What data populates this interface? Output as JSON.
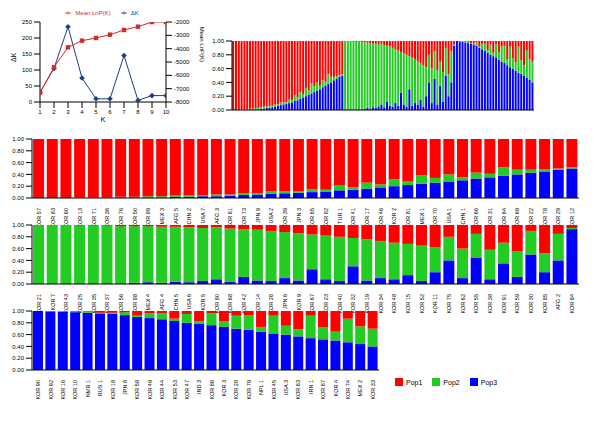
{
  "chart_data": [
    {
      "type": "line",
      "x_label": "K",
      "y_label": "ΔK",
      "y2_label": "Mean LnP(K)",
      "legend": "top",
      "x": [
        1,
        2,
        3,
        4,
        5,
        6,
        7,
        8,
        9,
        10
      ],
      "xlim": [
        1,
        10
      ],
      "xticks": [
        1,
        2,
        3,
        4,
        5,
        6,
        7,
        8,
        9,
        10
      ],
      "ylim": [
        0,
        250
      ],
      "yticks": [
        0,
        50,
        100,
        150,
        200,
        250
      ],
      "y2lim": [
        -8000,
        -2000
      ],
      "y2ticks": [
        -8000,
        -7000,
        -6000,
        -5000,
        -4000,
        -3000,
        -2000
      ],
      "series": [
        {
          "name": "ΔK",
          "color": "#1f3c88",
          "marker": "diamond",
          "values": [
            30,
            105,
            235,
            75,
            10,
            10,
            145,
            5,
            20,
            20
          ]
        },
        {
          "name": "Mean LnP(K)",
          "color": "#d62a2a",
          "marker": "square",
          "axis": "y2",
          "values": [
            -7300,
            -5400,
            -3900,
            -3400,
            -3200,
            -2950,
            -2600,
            -2350,
            -2000,
            -2000
          ]
        }
      ]
    },
    {
      "type": "bar",
      "stacked": true,
      "tick_labels": "y",
      "ylim": [
        0,
        1
      ],
      "yticks": [
        {
          "value": 0,
          "label": "0.00"
        },
        {
          "value": 0.2,
          "label": "0.20"
        },
        {
          "value": 0.4,
          "label": "0.40"
        },
        {
          "value": 0.6,
          "label": "0.60"
        },
        {
          "value": 0.8,
          "label": "0.80"
        },
        {
          "value": 1,
          "label": "1.00"
        }
      ],
      "series": [
        {
          "name": "Pop1",
          "color": "#ff0000",
          "values": [
            1,
            1,
            1,
            0.99,
            0.99,
            0.99,
            0.98,
            0.98,
            0.97,
            0.97,
            0.96,
            0.95,
            0.95,
            0.94,
            0.94,
            0.92,
            0.92,
            0.89,
            0.89,
            0.89,
            0.85,
            0.86,
            0.79,
            0.82,
            0.74,
            0.77,
            0.68,
            0.72,
            0.61,
            0.66,
            0.6,
            0.65,
            0.57,
            0.59,
            0.48,
            0.52,
            0.52,
            0.51,
            0.5,
            0.48,
            0,
            0,
            0,
            0.01,
            0.01,
            0.01,
            0.02,
            0.02,
            0.02,
            0.03,
            0.03,
            0.04,
            0.05,
            0.04,
            0.06,
            0.07,
            0.08,
            0.1,
            0.12,
            0.14,
            0.16,
            0.18,
            0.2,
            0.22,
            0.24,
            0.27,
            0.3,
            0.32,
            0.35,
            0.38,
            0.2,
            0.4,
            0.15,
            0.42,
            0.3,
            0.45,
            0.1,
            0.48,
            0.15,
            0.05,
            0,
            0.01,
            0,
            0.01,
            0.01,
            0.03,
            0.03,
            0.02,
            0.08,
            0.04,
            0.04,
            0.13,
            0.05,
            0.17,
            0.04,
            0.17,
            0.08,
            0.07,
            0.27,
            0.08,
            0.25,
            0.31,
            0.08,
            0.28,
            0.35,
            0.13,
            0.26,
            0.3
          ]
        },
        {
          "name": "Pop2",
          "color": "#22cc22",
          "values": [
            0,
            0,
            0,
            0.01,
            0.01,
            0.01,
            0.01,
            0.01,
            0.02,
            0.02,
            0.02,
            0.03,
            0.02,
            0.03,
            0.02,
            0.03,
            0.02,
            0.04,
            0.03,
            0.02,
            0.05,
            0.03,
            0.08,
            0.04,
            0.1,
            0.05,
            0.12,
            0.06,
            0.15,
            0.08,
            0.12,
            0.05,
            0.1,
            0.06,
            0.14,
            0.08,
            0.05,
            0.04,
            0.02,
            0.02,
            1,
            1,
            0.99,
            0.99,
            0.98,
            0.98,
            0.97,
            0.96,
            0.95,
            0.95,
            0.93,
            0.93,
            0.9,
            0.88,
            0.9,
            0.81,
            0.86,
            0.85,
            0.78,
            0.8,
            0.59,
            0.74,
            0.75,
            0.48,
            0.7,
            0.63,
            0.62,
            0.53,
            0.6,
            0.42,
            0.4,
            0.5,
            0.4,
            0.5,
            0.35,
            0.43,
            0.4,
            0.32,
            0.45,
            0.02,
            0,
            0,
            0.01,
            0.01,
            0.02,
            0.01,
            0.02,
            0.05,
            0.02,
            0.08,
            0.1,
            0.04,
            0.15,
            0.05,
            0.2,
            0.1,
            0.22,
            0.25,
            0.08,
            0.3,
            0.15,
            0.12,
            0.38,
            0.2,
            0.15,
            0.4,
            0.3,
            0.3
          ]
        },
        {
          "name": "Pop3",
          "color": "#0000ff",
          "values": [
            0,
            0,
            0,
            0,
            0,
            0,
            0.01,
            0.01,
            0.01,
            0.01,
            0.02,
            0.02,
            0.03,
            0.03,
            0.04,
            0.05,
            0.06,
            0.07,
            0.08,
            0.09,
            0.1,
            0.11,
            0.13,
            0.14,
            0.16,
            0.18,
            0.2,
            0.22,
            0.24,
            0.26,
            0.28,
            0.3,
            0.33,
            0.35,
            0.38,
            0.4,
            0.43,
            0.45,
            0.48,
            0.5,
            0,
            0,
            0.01,
            0,
            0.01,
            0.01,
            0.01,
            0.02,
            0.03,
            0.02,
            0.04,
            0.03,
            0.05,
            0.08,
            0.04,
            0.12,
            0.06,
            0.05,
            0.1,
            0.06,
            0.25,
            0.08,
            0.05,
            0.3,
            0.06,
            0.1,
            0.08,
            0.15,
            0.05,
            0.2,
            0.4,
            0.1,
            0.45,
            0.08,
            0.35,
            0.12,
            0.5,
            0.2,
            0.4,
            0.93,
            1,
            0.99,
            0.99,
            0.98,
            0.97,
            0.96,
            0.95,
            0.93,
            0.9,
            0.88,
            0.86,
            0.83,
            0.8,
            0.78,
            0.76,
            0.73,
            0.7,
            0.68,
            0.65,
            0.62,
            0.6,
            0.57,
            0.54,
            0.52,
            0.5,
            0.47,
            0.44,
            0.4
          ]
        }
      ]
    },
    {
      "type": "bar",
      "stacked": true,
      "ylim": [
        0,
        1
      ],
      "yticks": [
        {
          "value": 0,
          "label": "0.00"
        },
        {
          "value": 0.2,
          "label": "0.20"
        },
        {
          "value": 0.4,
          "label": "0.40"
        },
        {
          "value": 0.6,
          "label": "0.60"
        },
        {
          "value": 0.8,
          "label": "0.80"
        },
        {
          "value": 1,
          "label": "1.00"
        }
      ],
      "categories": [
        "KOR 57",
        "KOR 83",
        "KOR 60",
        "KOR 13",
        "KOR 71",
        "KOR 36",
        "KOR 76",
        "KOR 50",
        "KOR 89",
        "MEX 3",
        "AFG 5",
        "CHN 2",
        "USA 7",
        "AFG 3",
        "KOR 61",
        "KOR 73",
        "JPN 9",
        "USA 2",
        "KOR 39",
        "JPN 3",
        "KOR 65",
        "KOR 82",
        "TUR 1",
        "KOR 41",
        "KOR 17",
        "KOR 46",
        "KOR 2",
        "KOR 81",
        "MEX 1",
        "KOR 70",
        "USA 1",
        "CHN 1",
        "KOR 66",
        "KOR 31",
        "KOR 64",
        "KOR 69",
        "KOR 22",
        "KOR 78",
        "KOR 29",
        "KOR 12"
      ],
      "series": [
        {
          "name": "Pop1",
          "color": "#ff0000",
          "values": [
            1,
            1,
            1,
            0.99,
            0.99,
            0.99,
            0.98,
            0.98,
            0.97,
            0.97,
            0.96,
            0.95,
            0.95,
            0.94,
            0.94,
            0.92,
            0.92,
            0.89,
            0.89,
            0.89,
            0.85,
            0.86,
            0.79,
            0.82,
            0.74,
            0.77,
            0.68,
            0.72,
            0.61,
            0.66,
            0.6,
            0.65,
            0.57,
            0.59,
            0.48,
            0.52,
            0.52,
            0.51,
            0.5,
            0.48
          ]
        },
        {
          "name": "Pop2",
          "color": "#22cc22",
          "values": [
            0,
            0,
            0,
            0.01,
            0.01,
            0.01,
            0.01,
            0.01,
            0.02,
            0.02,
            0.02,
            0.03,
            0.02,
            0.03,
            0.02,
            0.03,
            0.02,
            0.04,
            0.03,
            0.02,
            0.05,
            0.03,
            0.08,
            0.04,
            0.1,
            0.05,
            0.12,
            0.06,
            0.15,
            0.08,
            0.12,
            0.05,
            0.1,
            0.06,
            0.14,
            0.08,
            0.05,
            0.04,
            0.02,
            0.02
          ]
        },
        {
          "name": "Pop3",
          "color": "#0000ff",
          "values": [
            0,
            0,
            0,
            0,
            0,
            0,
            0.01,
            0.01,
            0.01,
            0.01,
            0.02,
            0.02,
            0.03,
            0.03,
            0.04,
            0.05,
            0.06,
            0.07,
            0.08,
            0.09,
            0.1,
            0.11,
            0.13,
            0.14,
            0.16,
            0.18,
            0.2,
            0.22,
            0.24,
            0.26,
            0.28,
            0.3,
            0.33,
            0.35,
            0.38,
            0.4,
            0.43,
            0.45,
            0.48,
            0.5
          ]
        }
      ]
    },
    {
      "type": "bar",
      "stacked": true,
      "ylim": [
        0,
        1
      ],
      "yticks": [
        {
          "value": 0,
          "label": "0.00"
        },
        {
          "value": 0.2,
          "label": "0.20"
        },
        {
          "value": 0.4,
          "label": "0.40"
        },
        {
          "value": 0.6,
          "label": "0.60"
        },
        {
          "value": 0.8,
          "label": "0.80"
        },
        {
          "value": 1,
          "label": "1.00"
        }
      ],
      "categories": [
        "KOR 21",
        "KOR 7",
        "KOR 43",
        "KOR 25",
        "KOR 35",
        "KOR 37",
        "KOR 56",
        "KOR 88",
        "MEX 4",
        "AFG 4",
        "CHN 5",
        "USA 6",
        "KOR 5",
        "KOR 80",
        "KOR 68",
        "KOR 42",
        "KOR 14",
        "KOR 26",
        "JPN 6",
        "KOR 9",
        "KOR 67",
        "KOR 23",
        "KOR 40",
        "KOR 32",
        "KOR 19",
        "KOR 34",
        "KOR 48",
        "KOR 15",
        "KOR 52",
        "KOR 11",
        "KOR 75",
        "KOR 62",
        "KOR 55",
        "KOR 38",
        "KOR 91",
        "KOR 59",
        "KOR 30",
        "KOR 85",
        "AFG 2",
        "KOR 84"
      ],
      "series": [
        {
          "name": "Pop1",
          "color": "#ff0000",
          "values": [
            0,
            0,
            0,
            0.01,
            0.01,
            0.01,
            0.02,
            0.02,
            0.02,
            0.03,
            0.03,
            0.04,
            0.05,
            0.04,
            0.06,
            0.07,
            0.08,
            0.1,
            0.12,
            0.14,
            0.16,
            0.18,
            0.2,
            0.22,
            0.24,
            0.27,
            0.3,
            0.32,
            0.35,
            0.38,
            0.2,
            0.4,
            0.15,
            0.42,
            0.3,
            0.45,
            0.1,
            0.48,
            0.15,
            0.05
          ]
        },
        {
          "name": "Pop2",
          "color": "#22cc22",
          "values": [
            1,
            1,
            0.99,
            0.99,
            0.98,
            0.98,
            0.97,
            0.96,
            0.95,
            0.95,
            0.93,
            0.93,
            0.9,
            0.88,
            0.9,
            0.81,
            0.86,
            0.85,
            0.78,
            0.8,
            0.59,
            0.74,
            0.75,
            0.48,
            0.7,
            0.63,
            0.62,
            0.53,
            0.6,
            0.42,
            0.4,
            0.5,
            0.4,
            0.5,
            0.35,
            0.43,
            0.4,
            0.32,
            0.45,
            0.02
          ]
        },
        {
          "name": "Pop3",
          "color": "#0000ff",
          "values": [
            0,
            0,
            0.01,
            0,
            0.01,
            0.01,
            0.01,
            0.02,
            0.03,
            0.02,
            0.04,
            0.03,
            0.05,
            0.08,
            0.04,
            0.12,
            0.06,
            0.05,
            0.1,
            0.06,
            0.25,
            0.08,
            0.05,
            0.3,
            0.06,
            0.1,
            0.08,
            0.15,
            0.05,
            0.2,
            0.4,
            0.1,
            0.45,
            0.08,
            0.35,
            0.12,
            0.5,
            0.2,
            0.4,
            0.93
          ]
        }
      ]
    },
    {
      "type": "bar",
      "stacked": true,
      "legend": "right",
      "ylim": [
        0,
        1
      ],
      "yticks": [
        {
          "value": 0,
          "label": "0.00"
        },
        {
          "value": 0.2,
          "label": "0.20"
        },
        {
          "value": 0.4,
          "label": "0.40"
        },
        {
          "value": 0.6,
          "label": "0.60"
        },
        {
          "value": 0.8,
          "label": "0.80"
        },
        {
          "value": 1,
          "label": "1.00"
        }
      ],
      "categories": [
        "KOR 90",
        "KOR 92",
        "KOR 16",
        "KOR 10",
        "NMR 1",
        "RUS 1",
        "KOR 18",
        "JPN 8",
        "KOR 58",
        "KOR 49",
        "KOR 44",
        "KOR 53",
        "KOR 47",
        "IND 3",
        "KOR 86",
        "KOR 3",
        "KOR 28",
        "KOR 79",
        "NPL 1",
        "KOR 45",
        "USA 3",
        "KOR 63",
        "IRN 1",
        "KOR 87",
        "KOR 4",
        "KOR 74",
        "MEX 2",
        "KOR 33"
      ],
      "series": [
        {
          "name": "Pop1",
          "color": "#ff0000",
          "values": [
            0,
            0.01,
            0,
            0.01,
            0.01,
            0.03,
            0.03,
            0.02,
            0.08,
            0.04,
            0.04,
            0.13,
            0.05,
            0.17,
            0.04,
            0.17,
            0.08,
            0.07,
            0.27,
            0.08,
            0.25,
            0.31,
            0.08,
            0.28,
            0.35,
            0.13,
            0.26,
            0.3
          ]
        },
        {
          "name": "Pop2",
          "color": "#22cc22",
          "values": [
            0,
            0,
            0.01,
            0.01,
            0.02,
            0.01,
            0.02,
            0.05,
            0.02,
            0.08,
            0.1,
            0.04,
            0.15,
            0.05,
            0.2,
            0.1,
            0.22,
            0.25,
            0.08,
            0.3,
            0.15,
            0.12,
            0.38,
            0.2,
            0.15,
            0.4,
            0.3,
            0.3
          ]
        },
        {
          "name": "Pop3",
          "color": "#0000ff",
          "values": [
            1,
            0.99,
            0.99,
            0.98,
            0.97,
            0.96,
            0.95,
            0.93,
            0.9,
            0.88,
            0.86,
            0.83,
            0.8,
            0.78,
            0.76,
            0.73,
            0.7,
            0.68,
            0.65,
            0.62,
            0.6,
            0.57,
            0.54,
            0.52,
            0.5,
            0.47,
            0.44,
            0.4
          ]
        }
      ]
    }
  ]
}
